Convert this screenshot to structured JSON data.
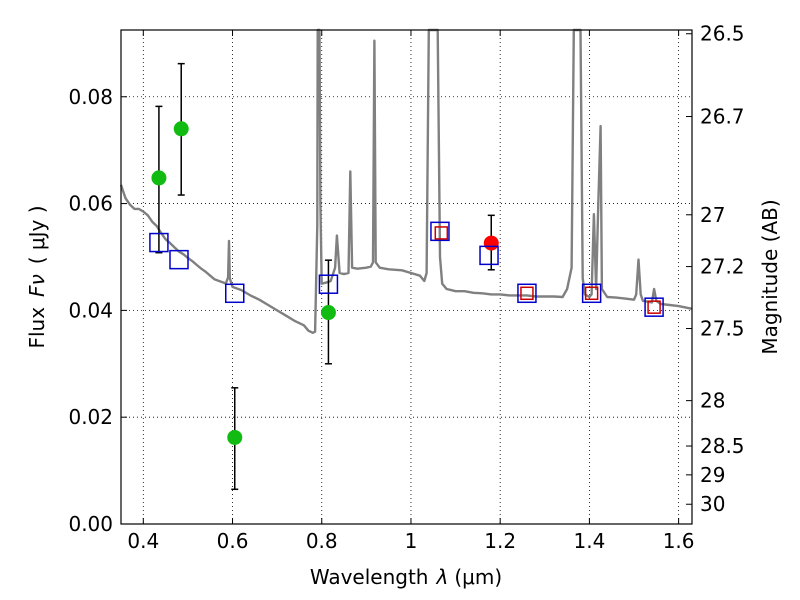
{
  "chart_data": {
    "type": "scatter",
    "xlabel_prefix": "Wavelength",
    "xlabel_symbol": "λ",
    "xlabel_units": "(μm)",
    "ylabel_prefix": "Flux",
    "ylabel_symbol": "Fν",
    "ylabel_units": "( μJy )",
    "y2label": "Magnitude (AB)",
    "xlim": [
      0.35,
      1.63
    ],
    "ylim": [
      0.0,
      0.0925
    ],
    "grid": true,
    "x_ticks": [
      0.4,
      0.6,
      0.8,
      1.0,
      1.2,
      1.4,
      1.6
    ],
    "x_tick_labels": [
      "0.4",
      "0.6",
      "0.8",
      "1",
      "1.2",
      "1.4",
      "1.6"
    ],
    "y_ticks": [
      0.0,
      0.02,
      0.04,
      0.06,
      0.08
    ],
    "y_tick_labels": [
      "0.00",
      "0.02",
      "0.04",
      "0.06",
      "0.08"
    ],
    "y2_ticks": [
      {
        "label": "26.5",
        "flux": 0.0918
      },
      {
        "label": "26.7",
        "flux": 0.0763
      },
      {
        "label": "27",
        "flux": 0.0579
      },
      {
        "label": "27.2",
        "flux": 0.0482
      },
      {
        "label": "27.5",
        "flux": 0.0366
      },
      {
        "label": "28",
        "flux": 0.0231
      },
      {
        "label": "28.5",
        "flux": 0.0146
      },
      {
        "label": "29",
        "flux": 0.0092
      },
      {
        "label": "30",
        "flux": 0.0037
      }
    ],
    "series": [
      {
        "name": "model spectrum",
        "style": "line",
        "color": "#808080",
        "points": [
          [
            0.35,
            0.0635
          ],
          [
            0.36,
            0.061
          ],
          [
            0.37,
            0.0598
          ],
          [
            0.38,
            0.059
          ],
          [
            0.39,
            0.059
          ],
          [
            0.4,
            0.0585
          ],
          [
            0.41,
            0.0578
          ],
          [
            0.42,
            0.0566
          ],
          [
            0.43,
            0.0558
          ],
          [
            0.44,
            0.0545
          ],
          [
            0.45,
            0.0533
          ],
          [
            0.46,
            0.0526
          ],
          [
            0.47,
            0.0518
          ],
          [
            0.48,
            0.051
          ],
          [
            0.49,
            0.0505
          ],
          [
            0.5,
            0.0498
          ],
          [
            0.51,
            0.0492
          ],
          [
            0.52,
            0.0485
          ],
          [
            0.53,
            0.0478
          ],
          [
            0.54,
            0.0472
          ],
          [
            0.55,
            0.0465
          ],
          [
            0.56,
            0.0458
          ],
          [
            0.57,
            0.0455
          ],
          [
            0.58,
            0.0452
          ],
          [
            0.585,
            0.045
          ],
          [
            0.59,
            0.0462
          ],
          [
            0.592,
            0.053
          ],
          [
            0.594,
            0.046
          ],
          [
            0.6,
            0.0444
          ],
          [
            0.62,
            0.0438
          ],
          [
            0.64,
            0.0428
          ],
          [
            0.66,
            0.042
          ],
          [
            0.68,
            0.041
          ],
          [
            0.7,
            0.04
          ],
          [
            0.72,
            0.039
          ],
          [
            0.74,
            0.038
          ],
          [
            0.76,
            0.0372
          ],
          [
            0.77,
            0.0362
          ],
          [
            0.78,
            0.0358
          ],
          [
            0.785,
            0.036
          ],
          [
            0.79,
            0.056
          ],
          [
            0.791,
            0.0925
          ],
          [
            0.795,
            0.0925
          ],
          [
            0.797,
            0.06
          ],
          [
            0.8,
            0.045
          ],
          [
            0.81,
            0.0452
          ],
          [
            0.82,
            0.0455
          ],
          [
            0.83,
            0.048
          ],
          [
            0.834,
            0.054
          ],
          [
            0.84,
            0.047
          ],
          [
            0.85,
            0.0468
          ],
          [
            0.86,
            0.047
          ],
          [
            0.864,
            0.066
          ],
          [
            0.868,
            0.048
          ],
          [
            0.88,
            0.0478
          ],
          [
            0.9,
            0.048
          ],
          [
            0.91,
            0.0482
          ],
          [
            0.915,
            0.049
          ],
          [
            0.918,
            0.0905
          ],
          [
            0.921,
            0.049
          ],
          [
            0.93,
            0.048
          ],
          [
            0.95,
            0.0477
          ],
          [
            0.98,
            0.0475
          ],
          [
            1.0,
            0.047
          ],
          [
            1.02,
            0.0465
          ],
          [
            1.03,
            0.0455
          ],
          [
            1.035,
            0.047
          ],
          [
            1.04,
            0.0925
          ],
          [
            1.06,
            0.0925
          ],
          [
            1.065,
            0.05
          ],
          [
            1.07,
            0.045
          ],
          [
            1.08,
            0.044
          ],
          [
            1.09,
            0.0438
          ],
          [
            1.1,
            0.0436
          ],
          [
            1.12,
            0.0436
          ],
          [
            1.14,
            0.0433
          ],
          [
            1.16,
            0.0432
          ],
          [
            1.18,
            0.043
          ],
          [
            1.2,
            0.043
          ],
          [
            1.22,
            0.0428
          ],
          [
            1.24,
            0.0428
          ],
          [
            1.26,
            0.0428
          ],
          [
            1.28,
            0.0426
          ],
          [
            1.3,
            0.0426
          ],
          [
            1.32,
            0.0426
          ],
          [
            1.34,
            0.0425
          ],
          [
            1.35,
            0.044
          ],
          [
            1.36,
            0.048
          ],
          [
            1.365,
            0.0925
          ],
          [
            1.38,
            0.0925
          ],
          [
            1.385,
            0.046
          ],
          [
            1.39,
            0.043
          ],
          [
            1.4,
            0.0425
          ],
          [
            1.405,
            0.043
          ],
          [
            1.41,
            0.058
          ],
          [
            1.415,
            0.044
          ],
          [
            1.42,
            0.06
          ],
          [
            1.425,
            0.0745
          ],
          [
            1.428,
            0.044
          ],
          [
            1.44,
            0.0425
          ],
          [
            1.46,
            0.0424
          ],
          [
            1.48,
            0.0422
          ],
          [
            1.5,
            0.042
          ],
          [
            1.505,
            0.043
          ],
          [
            1.51,
            0.0495
          ],
          [
            1.515,
            0.043
          ],
          [
            1.52,
            0.0418
          ],
          [
            1.54,
            0.0415
          ],
          [
            1.545,
            0.044
          ],
          [
            1.55,
            0.0418
          ],
          [
            1.56,
            0.0412
          ],
          [
            1.58,
            0.041
          ],
          [
            1.6,
            0.0408
          ],
          [
            1.63,
            0.0403
          ]
        ]
      },
      {
        "name": "observed (green)",
        "style": "markers+errorbars",
        "color": "#11bb11",
        "points": [
          {
            "x": 0.435,
            "y": 0.0648,
            "ylo": 0.0508,
            "yhi": 0.0782
          },
          {
            "x": 0.485,
            "y": 0.074,
            "ylo": 0.0616,
            "yhi": 0.0862
          },
          {
            "x": 0.605,
            "y": 0.0162,
            "ylo": 0.0065,
            "yhi": 0.0255
          },
          {
            "x": 0.815,
            "y": 0.0396,
            "ylo": 0.03,
            "yhi": 0.0494
          }
        ]
      },
      {
        "name": "observed (red)",
        "style": "markers+errorbars",
        "color": "#ff0000",
        "points": [
          {
            "x": 1.18,
            "y": 0.0526,
            "ylo": 0.0476,
            "yhi": 0.0578
          }
        ]
      },
      {
        "name": "model photometry (blue squares)",
        "style": "open-square",
        "color": "#0000cc",
        "points": [
          [
            0.435,
            0.0527
          ],
          [
            0.48,
            0.0495
          ],
          [
            0.605,
            0.0432
          ],
          [
            0.815,
            0.0449
          ],
          [
            1.065,
            0.0548
          ],
          [
            1.175,
            0.0503
          ],
          [
            1.26,
            0.0432
          ],
          [
            1.405,
            0.0432
          ],
          [
            1.545,
            0.0406
          ]
        ]
      },
      {
        "name": "model photometry (red squares)",
        "style": "open-square",
        "color": "#cc0000",
        "points": [
          [
            1.068,
            0.0545
          ],
          [
            1.26,
            0.0432
          ],
          [
            1.405,
            0.0432
          ],
          [
            1.545,
            0.0406
          ]
        ]
      }
    ]
  }
}
